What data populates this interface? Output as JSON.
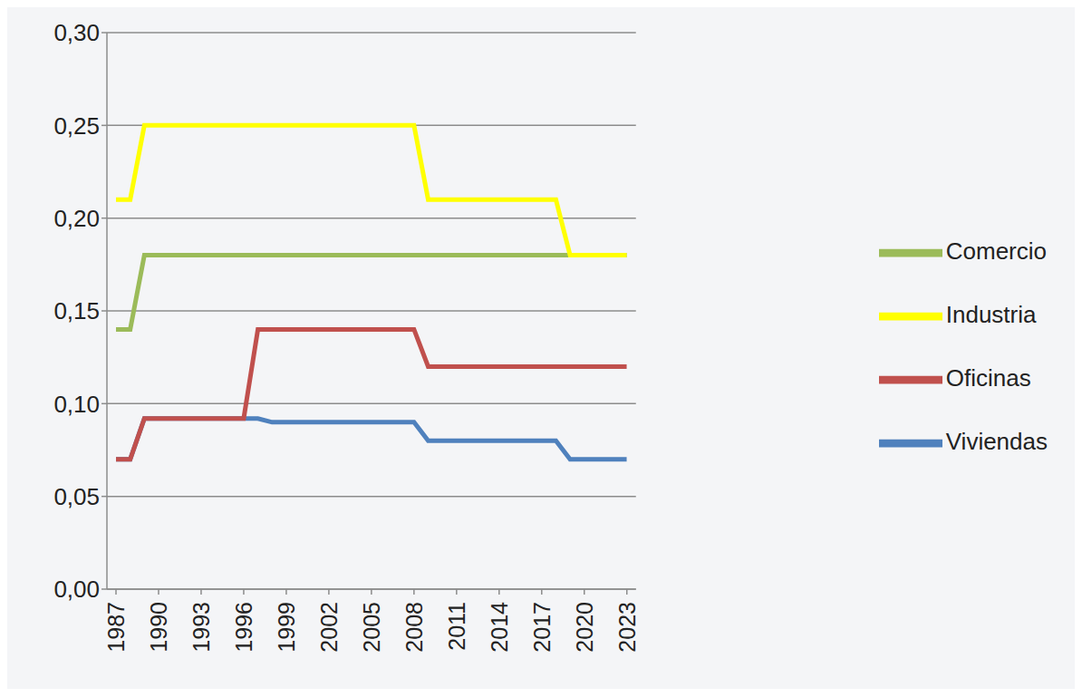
{
  "chart_data": {
    "type": "line",
    "x": [
      1987,
      1988,
      1989,
      1990,
      1991,
      1992,
      1993,
      1994,
      1995,
      1996,
      1997,
      1998,
      1999,
      2000,
      2001,
      2002,
      2003,
      2004,
      2005,
      2006,
      2007,
      2008,
      2009,
      2010,
      2011,
      2012,
      2013,
      2014,
      2015,
      2016,
      2017,
      2018,
      2019,
      2020,
      2021,
      2022,
      2023
    ],
    "series": [
      {
        "name": "Viviendas",
        "color": "#4f81bd",
        "values": [
          0.07,
          0.07,
          0.092,
          0.092,
          0.092,
          0.092,
          0.092,
          0.092,
          0.092,
          0.092,
          0.092,
          0.09,
          0.09,
          0.09,
          0.09,
          0.09,
          0.09,
          0.09,
          0.09,
          0.09,
          0.09,
          0.09,
          0.08,
          0.08,
          0.08,
          0.08,
          0.08,
          0.08,
          0.08,
          0.08,
          0.08,
          0.08,
          0.07,
          0.07,
          0.07,
          0.07,
          0.07
        ]
      },
      {
        "name": "Oficinas",
        "color": "#c0504d",
        "values": [
          0.07,
          0.07,
          0.092,
          0.092,
          0.092,
          0.092,
          0.092,
          0.092,
          0.092,
          0.092,
          0.14,
          0.14,
          0.14,
          0.14,
          0.14,
          0.14,
          0.14,
          0.14,
          0.14,
          0.14,
          0.14,
          0.14,
          0.12,
          0.12,
          0.12,
          0.12,
          0.12,
          0.12,
          0.12,
          0.12,
          0.12,
          0.12,
          0.12,
          0.12,
          0.12,
          0.12,
          0.12
        ]
      },
      {
        "name": "Comercio",
        "color": "#9bbb59",
        "values": [
          0.14,
          0.14,
          0.18,
          0.18,
          0.18,
          0.18,
          0.18,
          0.18,
          0.18,
          0.18,
          0.18,
          0.18,
          0.18,
          0.18,
          0.18,
          0.18,
          0.18,
          0.18,
          0.18,
          0.18,
          0.18,
          0.18,
          0.18,
          0.18,
          0.18,
          0.18,
          0.18,
          0.18,
          0.18,
          0.18,
          0.18,
          0.18,
          0.18,
          0.18,
          0.18,
          0.18,
          0.18
        ]
      },
      {
        "name": "Industria",
        "color": "#ffff00",
        "values": [
          0.21,
          0.21,
          0.25,
          0.25,
          0.25,
          0.25,
          0.25,
          0.25,
          0.25,
          0.25,
          0.25,
          0.25,
          0.25,
          0.25,
          0.25,
          0.25,
          0.25,
          0.25,
          0.25,
          0.25,
          0.25,
          0.25,
          0.21,
          0.21,
          0.21,
          0.21,
          0.21,
          0.21,
          0.21,
          0.21,
          0.21,
          0.21,
          0.18,
          0.18,
          0.18,
          0.18,
          0.18
        ]
      }
    ],
    "xlim": [
      1987,
      2023
    ],
    "xticks": [
      1987,
      1990,
      1993,
      1996,
      1999,
      2002,
      2005,
      2008,
      2011,
      2014,
      2017,
      2020,
      2023
    ],
    "ylim": [
      0,
      0.3
    ],
    "yticks": [
      {
        "value": 0,
        "label": "0,00"
      },
      {
        "value": 0.05,
        "label": "0,05"
      },
      {
        "value": 0.1,
        "label": "0,10"
      },
      {
        "value": 0.15,
        "label": "0,15"
      },
      {
        "value": 0.2,
        "label": "0,20"
      },
      {
        "value": 0.25,
        "label": "0,25"
      },
      {
        "value": 0.3,
        "label": "0,30"
      }
    ],
    "grid": true,
    "legend": "right"
  }
}
